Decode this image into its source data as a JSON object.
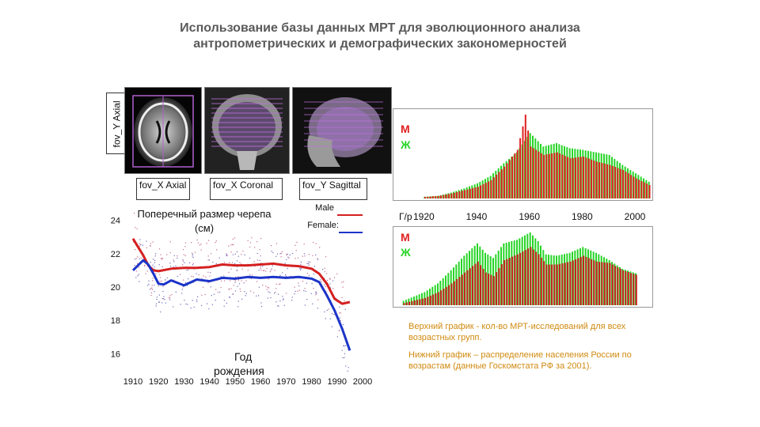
{
  "title": {
    "line1": "Использование базы данных МРТ для эволюционного анализа",
    "line2": "антропометрических и демографических закономерностей"
  },
  "mri": {
    "fov_y_axial": "fov_Y Axial",
    "fov_x_axial": "fov_X Axial",
    "fov_x_coronal": "fov_X Coronal",
    "fov_y_sagittal": "fov_Y Sagittal"
  },
  "skull_chart": {
    "title_line1": "Поперечный размер черепа",
    "title_line2": "(см)",
    "xlabel_line1": "Год",
    "xlabel_line2": "рождения",
    "legend_male": "Male",
    "legend_female": "Female:",
    "colors": {
      "male": "#d42020",
      "female": "#1c34c8"
    }
  },
  "mri_counts_chart": {
    "legend_m": "М",
    "legend_f": "Ж",
    "axis_prefix": "Г/р",
    "tick_labels": [
      "1920",
      "1940",
      "1960",
      "1980",
      "2000"
    ],
    "colors": {
      "m": "#e02020",
      "f": "#27d427"
    }
  },
  "population_chart": {
    "legend_m": "М",
    "legend_f": "Ж"
  },
  "notes": {
    "upper": "Верхний график - кол-во МРТ-исследований для всех возрастных групп.",
    "lower": "Нижний график – распределение населения России по возрастам (данные Госкомстата РФ за 2001)."
  },
  "chart_data": [
    {
      "type": "line",
      "title": "Поперечный размер черепа (см)",
      "xlabel": "Год рождения",
      "ylabel": "",
      "xlim": [
        1910,
        2000
      ],
      "ylim": [
        15.5,
        24.5
      ],
      "x_ticks": [
        1910,
        1920,
        1930,
        1940,
        1950,
        1960,
        1970,
        1980,
        1990,
        2000
      ],
      "y_ticks": [
        16,
        18,
        20,
        22,
        24
      ],
      "grid": false,
      "legend": "top-right",
      "series": [
        {
          "name": "Male",
          "x": [
            1910,
            1912,
            1914,
            1916,
            1918,
            1920,
            1925,
            1930,
            1935,
            1940,
            1945,
            1950,
            1955,
            1960,
            1965,
            1970,
            1975,
            1980,
            1983,
            1986,
            1989,
            1992,
            1995
          ],
          "y": [
            22.9,
            22.4,
            21.9,
            21.3,
            21.0,
            20.95,
            21.1,
            21.15,
            21.15,
            21.2,
            21.35,
            21.3,
            21.3,
            21.35,
            21.4,
            21.3,
            21.25,
            21.1,
            20.8,
            20.2,
            19.3,
            19.0,
            19.1
          ]
        },
        {
          "name": "Female:",
          "x": [
            1910,
            1912,
            1914,
            1916,
            1918,
            1920,
            1922,
            1925,
            1930,
            1935,
            1940,
            1945,
            1950,
            1955,
            1960,
            1965,
            1970,
            1975,
            1980,
            1983,
            1986,
            1989,
            1992,
            1995
          ],
          "y": [
            21.0,
            21.3,
            21.6,
            21.35,
            20.8,
            20.2,
            20.15,
            20.4,
            20.1,
            20.45,
            20.35,
            20.55,
            20.5,
            20.6,
            20.55,
            20.6,
            20.55,
            20.6,
            20.5,
            20.3,
            19.5,
            18.6,
            17.5,
            16.2
          ]
        }
      ]
    },
    {
      "type": "bar",
      "title": "",
      "xlabel": "Г/р",
      "ylabel": "",
      "xlim": [
        1910,
        2006
      ],
      "x_ticks": [
        1920,
        1940,
        1960,
        1980,
        2000
      ],
      "series": [
        {
          "name": "М",
          "x": [
            1920,
            1925,
            1930,
            1935,
            1940,
            1945,
            1950,
            1955,
            1958,
            1960,
            1965,
            1970,
            1975,
            1980,
            1985,
            1990,
            1995,
            2000,
            2005
          ],
          "values": [
            2,
            3,
            6,
            10,
            14,
            22,
            38,
            58,
            100,
            62,
            52,
            55,
            48,
            50,
            44,
            40,
            34,
            24,
            16
          ]
        },
        {
          "name": "Ж",
          "x": [
            1920,
            1925,
            1930,
            1935,
            1940,
            1945,
            1950,
            1955,
            1960,
            1965,
            1970,
            1975,
            1980,
            1985,
            1990,
            1995,
            2000,
            2005
          ],
          "values": [
            2,
            3,
            7,
            12,
            18,
            27,
            42,
            55,
            78,
            62,
            66,
            60,
            58,
            55,
            52,
            40,
            30,
            20
          ]
        }
      ]
    },
    {
      "type": "bar",
      "title": "",
      "xlabel": "",
      "ylabel": "",
      "xlim": [
        1910,
        2006
      ],
      "series": [
        {
          "name": "М",
          "x": [
            1912,
            1920,
            1925,
            1930,
            1935,
            1940,
            1943,
            1946,
            1950,
            1955,
            1960,
            1963,
            1966,
            1970,
            1975,
            1980,
            1985,
            1990,
            1995,
            2000
          ],
          "values": [
            3,
            10,
            18,
            30,
            45,
            60,
            45,
            40,
            62,
            70,
            80,
            70,
            56,
            56,
            60,
            68,
            60,
            58,
            48,
            42
          ]
        },
        {
          "name": "Ж",
          "x": [
            1912,
            1920,
            1925,
            1930,
            1935,
            1940,
            1943,
            1946,
            1950,
            1955,
            1960,
            1963,
            1966,
            1970,
            1975,
            1980,
            1985,
            1990,
            1995,
            2000
          ],
          "values": [
            6,
            18,
            30,
            48,
            68,
            85,
            72,
            65,
            85,
            90,
            100,
            88,
            70,
            68,
            72,
            80,
            72,
            62,
            50,
            44
          ]
        }
      ]
    }
  ]
}
